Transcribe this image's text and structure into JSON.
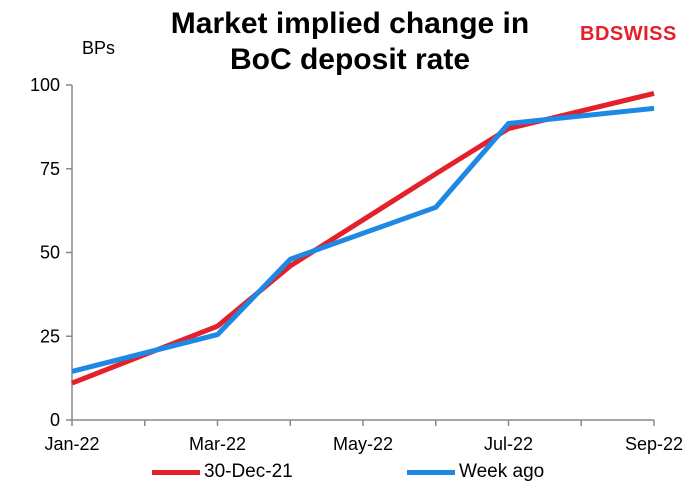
{
  "brand": {
    "name": "BDSWISS",
    "prefix": "BD",
    "suffix": "SWISS",
    "color": "#e4202a"
  },
  "chart_data": {
    "type": "line",
    "title_lines": [
      "Market implied change in",
      "BoC deposit rate"
    ],
    "ylabel": "BPs",
    "xlabel": "",
    "ylim": [
      0,
      100
    ],
    "yticks": [
      0,
      25,
      50,
      75,
      100
    ],
    "xticks": [
      "Jan-22",
      "Mar-22",
      "May-22",
      "Jul-22",
      "Sep-22"
    ],
    "x": [
      "Jan-22",
      "Feb-22",
      "Mar-22",
      "Apr-22",
      "May-22",
      "Jun-22",
      "Jul-22",
      "Aug-22",
      "Sep-22"
    ],
    "grid": false,
    "legend_position": "bottom",
    "series": [
      {
        "name": "30-Dec-21",
        "color": "#e4202a",
        "values": [
          11,
          null,
          28,
          46,
          null,
          73.5,
          87,
          null,
          97.5
        ]
      },
      {
        "name": "Week ago",
        "color": "#1e88e5",
        "values": [
          14.5,
          null,
          25.5,
          48,
          null,
          63.5,
          88.5,
          null,
          93
        ]
      }
    ]
  }
}
